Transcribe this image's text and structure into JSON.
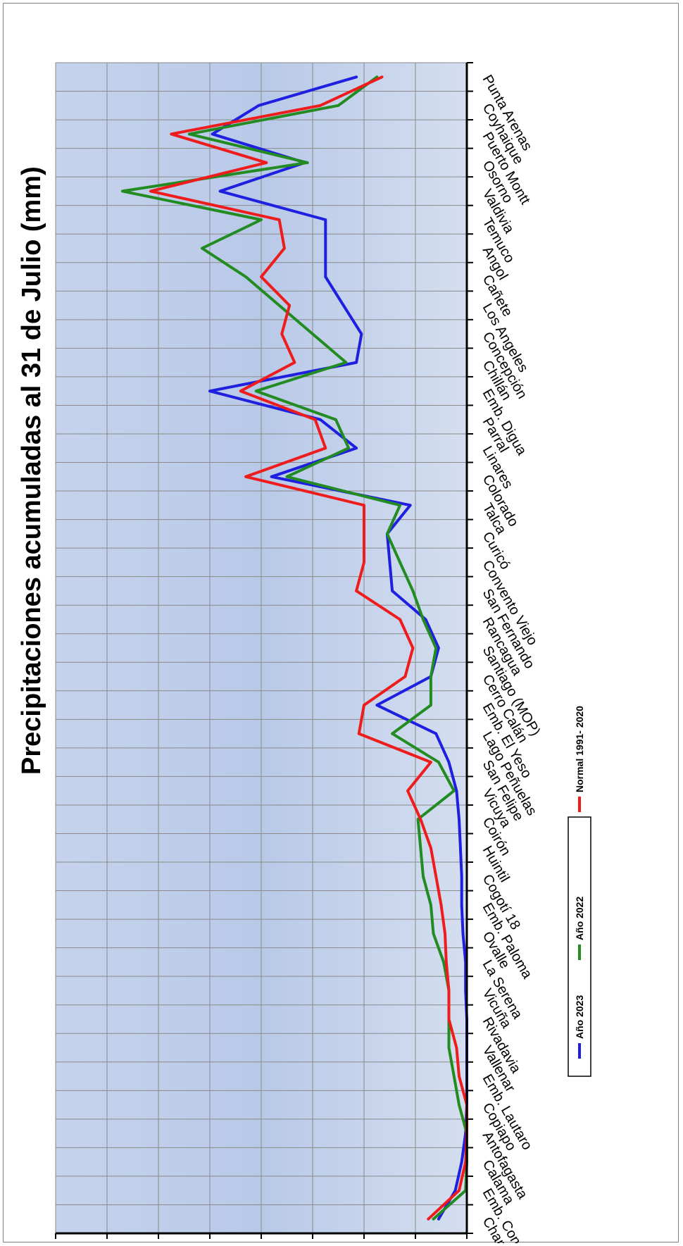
{
  "chart_data": {
    "type": "line",
    "orientation": "rotated 90 degrees clockwise (categories run along the vertical edge, values along the bottom)",
    "title": "Precipitaciones acumuladas al 31 de Julio (mm)",
    "xlabel": "",
    "ylabel": "",
    "ylim": [
      0,
      1600
    ],
    "yticks": [
      0,
      200,
      400,
      600,
      800,
      1000,
      1200,
      1400,
      1600
    ],
    "grid": true,
    "legend_position": "right",
    "categories": [
      "Chapiquiña",
      "Emb. Conchi",
      "Calama",
      "Antofagasta",
      "Copiapo",
      "Emb. Lautaro",
      "Vallenar",
      "Rivadavia",
      "Vicuña",
      "La Serena",
      "Ovalle",
      "Emb. Paloma",
      "Cogotí 18",
      "Huintil",
      "Coirón",
      "Vicuya",
      "San Felipe",
      "Lago Peñuelas",
      "Emb. El Yeso",
      "Cerro Calán",
      "Santiago (MOP)",
      "Rancagua",
      "San Fernando",
      "Convento Viejo",
      "Curicó",
      "Talca",
      "Colorado",
      "Linares",
      "Parral",
      "Emb. Digua",
      "Chillán",
      "Concepción",
      "Los Angeles",
      "Cañete",
      "Angol",
      "Temuco",
      "Valdivia",
      "Osorno",
      "Puerto Montt",
      "Coyhaique",
      "Punta Arenas"
    ],
    "series": [
      {
        "name": "Año 2023",
        "color": "#1f1fe0",
        "values": [
          110,
          45,
          20,
          5,
          0,
          0,
          0,
          0,
          5,
          5,
          15,
          20,
          20,
          25,
          30,
          40,
          70,
          120,
          350,
          140,
          110,
          160,
          290,
          300,
          310,
          220,
          760,
          430,
          570,
          1000,
          430,
          410,
          480,
          550,
          550,
          550,
          960,
          630,
          990,
          810,
          430
        ]
      },
      {
        "name": "Año 2022",
        "color": "#228b22",
        "values": [
          130,
          5,
          0,
          0,
          30,
          50,
          70,
          70,
          70,
          90,
          130,
          140,
          170,
          180,
          190,
          50,
          110,
          290,
          140,
          140,
          120,
          170,
          210,
          260,
          310,
          260,
          700,
          460,
          510,
          820,
          470,
          600,
          730,
          860,
          1030,
          800,
          1340,
          620,
          1080,
          500,
          350
        ]
      },
      {
        "name": "Normal 1991- 2020",
        "color": "#ee1c1c",
        "values": [
          150,
          30,
          5,
          0,
          0,
          30,
          40,
          70,
          70,
          80,
          85,
          100,
          120,
          140,
          180,
          230,
          140,
          420,
          400,
          240,
          210,
          260,
          430,
          400,
          400,
          400,
          860,
          550,
          590,
          880,
          670,
          720,
          690,
          800,
          710,
          730,
          1230,
          780,
          1150,
          570,
          330
        ]
      }
    ]
  }
}
